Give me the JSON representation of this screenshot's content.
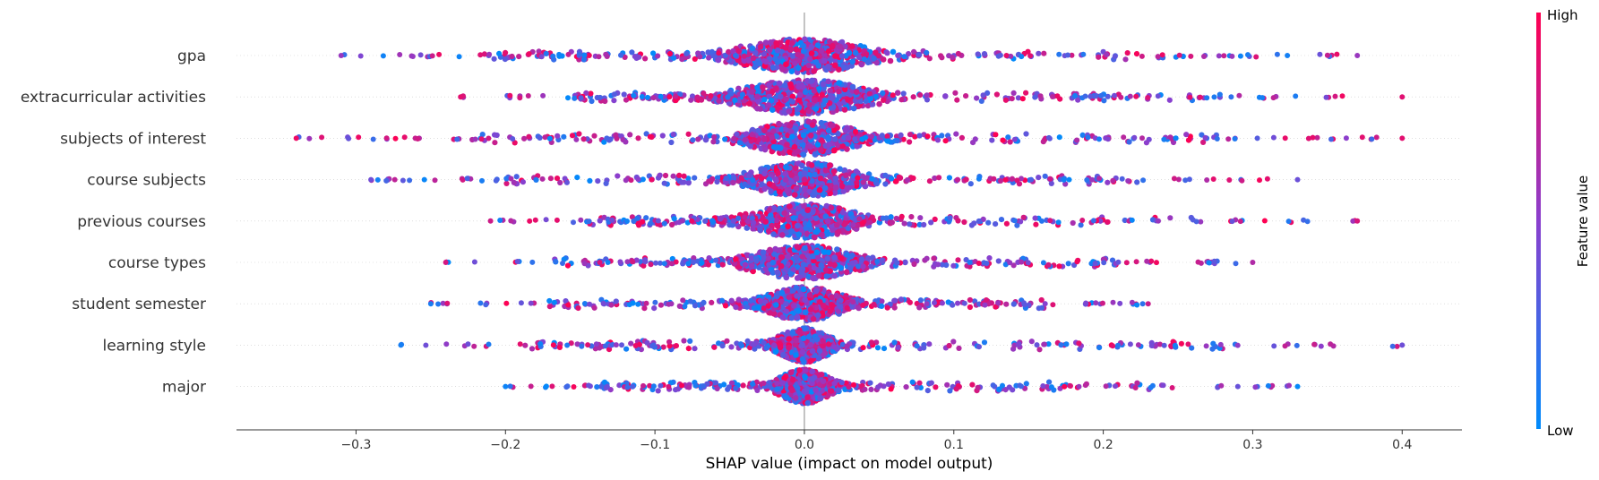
{
  "chart_data": {
    "type": "scatter",
    "subtype": "beeswarm",
    "xlabel": "SHAP value (impact on model output)",
    "xlim": [
      -0.38,
      0.44
    ],
    "x_ticks": [
      -0.3,
      -0.2,
      -0.1,
      0.0,
      0.1,
      0.2,
      0.3,
      0.4
    ],
    "x_tick_labels": [
      "−0.3",
      "−0.2",
      "−0.1",
      "0.0",
      "0.1",
      "0.2",
      "0.3",
      "0.4"
    ],
    "features": [
      {
        "name": "gpa",
        "min": -0.31,
        "max": 0.37,
        "core": 0.05
      },
      {
        "name": "extracurricular activities",
        "min": -0.23,
        "max": 0.4,
        "core": 0.05
      },
      {
        "name": "subjects of interest",
        "min": -0.34,
        "max": 0.4,
        "core": 0.04
      },
      {
        "name": "course subjects",
        "min": -0.29,
        "max": 0.33,
        "core": 0.04
      },
      {
        "name": "previous courses",
        "min": -0.21,
        "max": 0.37,
        "core": 0.04
      },
      {
        "name": "course types",
        "min": -0.24,
        "max": 0.3,
        "core": 0.04
      },
      {
        "name": "student semester",
        "min": -0.25,
        "max": 0.23,
        "core": 0.03
      },
      {
        "name": "learning style",
        "min": -0.27,
        "max": 0.4,
        "core": 0.02
      },
      {
        "name": "major",
        "min": -0.2,
        "max": 0.33,
        "core": 0.02
      }
    ],
    "colorbar": {
      "label": "Feature value",
      "high_label": "High",
      "low_label": "Low",
      "high_color": "#ff0052",
      "low_color": "#008bfb"
    },
    "zero_line": true,
    "grid": false
  }
}
